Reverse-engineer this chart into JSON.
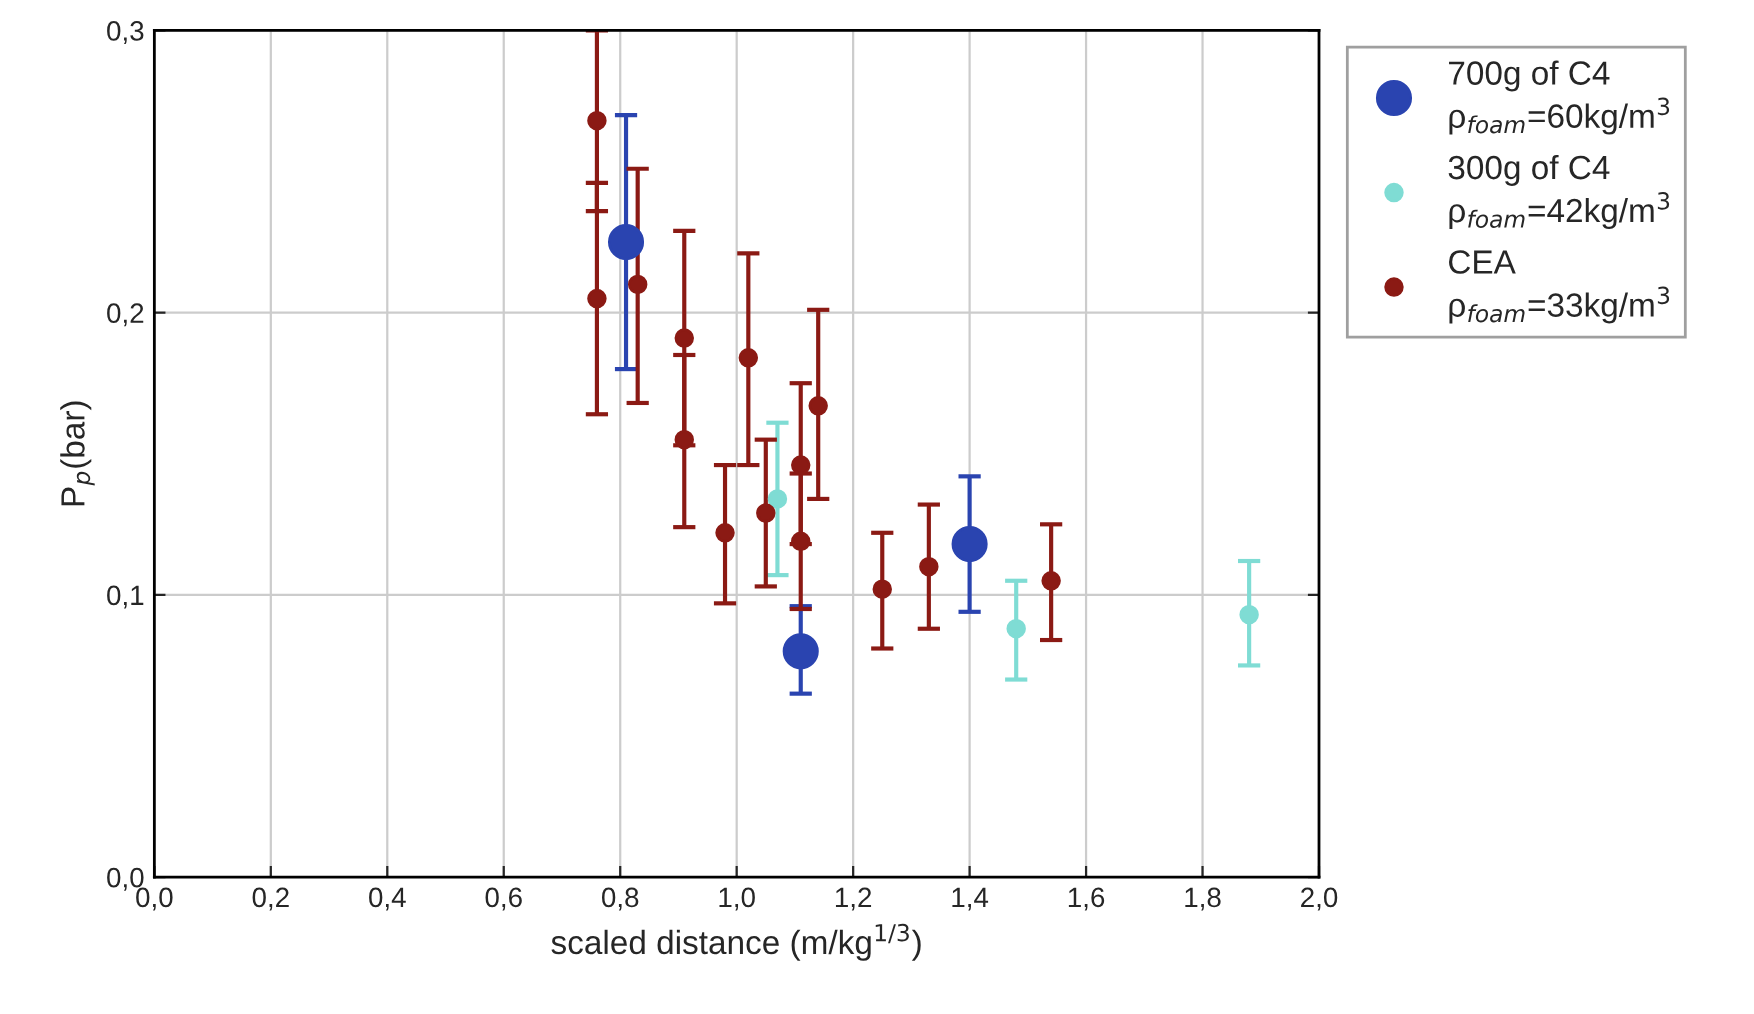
{
  "chart_data": {
    "type": "scatter",
    "xlabel": "scaled distance (m/kg$^{1/3}$)",
    "ylabel": "P$_{p}$(bar)",
    "xlim": [
      0,
      2
    ],
    "ylim": [
      0,
      0.3
    ],
    "xticks": [
      {
        "value": 0,
        "label": "0,0"
      },
      {
        "value": 0.2,
        "label": "0,2"
      },
      {
        "value": 0.4,
        "label": "0,4"
      },
      {
        "value": 0.6,
        "label": "0,6"
      },
      {
        "value": 0.8,
        "label": "0,8"
      },
      {
        "value": 1.0,
        "label": "1,0"
      },
      {
        "value": 1.2,
        "label": "1,2"
      },
      {
        "value": 1.4,
        "label": "1,4"
      },
      {
        "value": 1.6,
        "label": "1,6"
      },
      {
        "value": 1.8,
        "label": "1,8"
      },
      {
        "value": 2.0,
        "label": "2,0"
      }
    ],
    "yticks": [
      {
        "value": 0,
        "label": "0,0"
      },
      {
        "value": 0.1,
        "label": "0,1"
      },
      {
        "value": 0.2,
        "label": "0,2"
      },
      {
        "value": 0.3,
        "label": "0,3"
      }
    ],
    "grid": true,
    "legend": "top right",
    "marker": "circle",
    "series": [
      {
        "name": "700g of C4\nρ$_{foam}$=60kg/m$^{3}$",
        "color": "#2a44b0",
        "x": [
          0.81,
          1.11,
          1.4
        ],
        "values": [
          0.225,
          0.08,
          0.118
        ],
        "errors": [
          [
            0.18,
            0.27
          ],
          [
            0.065,
            0.096
          ],
          [
            0.094,
            0.142
          ]
        ]
      },
      {
        "name": "300g of C4\nρ$_{foam}$=42kg/m$^{3}$",
        "color": "#7fdcd4",
        "x": [
          1.07,
          1.48,
          1.88
        ],
        "values": [
          0.134,
          0.088,
          0.093
        ],
        "errors": [
          [
            0.107,
            0.161
          ],
          [
            0.07,
            0.105
          ],
          [
            0.075,
            0.112
          ]
        ]
      },
      {
        "name": "CEA\nρ$_{foam}$=33kg/m$^{3}$",
        "color": "#8b1a14",
        "x": [
          0.76,
          0.76,
          0.83,
          0.91,
          0.91,
          0.98,
          1.02,
          1.05,
          1.11,
          1.11,
          1.14,
          1.25,
          1.33,
          1.54
        ],
        "values": [
          0.268,
          0.205,
          0.21,
          0.191,
          0.155,
          0.122,
          0.184,
          0.129,
          0.146,
          0.119,
          0.167,
          0.102,
          0.11,
          0.105
        ],
        "errors": [
          [
            0.236,
            0.3
          ],
          [
            0.164,
            0.246
          ],
          [
            0.168,
            0.251
          ],
          [
            0.153,
            0.229
          ],
          [
            0.124,
            0.185
          ],
          [
            0.097,
            0.146
          ],
          [
            0.146,
            0.221
          ],
          [
            0.103,
            0.155
          ],
          [
            0.118,
            0.175
          ],
          [
            0.095,
            0.143
          ],
          [
            0.134,
            0.201
          ],
          [
            0.081,
            0.122
          ],
          [
            0.088,
            0.132
          ],
          [
            0.084,
            0.125
          ]
        ]
      }
    ]
  }
}
